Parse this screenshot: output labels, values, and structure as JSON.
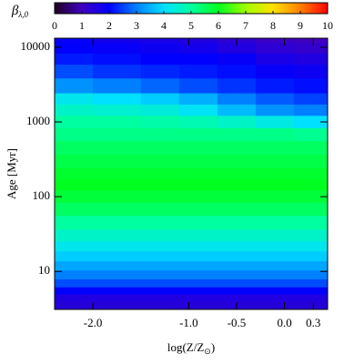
{
  "chart_data": {
    "type": "heatmap",
    "colorbar_label": {
      "main": "β",
      "sub": "λ,0"
    },
    "xlabel": {
      "main": "log(Z/Z",
      "sub": "⊙",
      "end": ")"
    },
    "ylabel": "Age [Myr]",
    "clim": [
      0,
      10
    ],
    "cticks": [
      0,
      1,
      2,
      3,
      4,
      5,
      6,
      7,
      8,
      9,
      10
    ],
    "colormap": [
      "#200020",
      "#4000c0",
      "#0000ff",
      "#0080ff",
      "#00e0ff",
      "#00ffa0",
      "#00ff20",
      "#a0ff00",
      "#ffe000",
      "#ff8000",
      "#ff0000"
    ],
    "xlim": [
      -2.4,
      0.45
    ],
    "xticks": [
      {
        "value": -2,
        "label": "-2.0"
      },
      {
        "value": -1,
        "label": "-1.0"
      },
      {
        "value": -0.5,
        "label": "-0.5"
      },
      {
        "value": 0,
        "label": "0.0"
      },
      0.3
    ],
    "ylim": [
      3.1,
      13200
    ],
    "ylog": true,
    "yticks": [
      10,
      100,
      1000,
      10000
    ],
    "x": [
      -2.3,
      -1.7,
      -1.3,
      -0.9,
      -0.5,
      -0.1,
      0.3
    ],
    "y": [
      3.5,
      4.5,
      5.5,
      7,
      9,
      12,
      16,
      22,
      30,
      45,
      70,
      100,
      150,
      200,
      300,
      450,
      700,
      1000,
      1500,
      2000,
      3000,
      5000,
      7000,
      10000,
      13000
    ],
    "values": [
      [
        1.4,
        1.4,
        1.4,
        1.4,
        1.4,
        1.4,
        1.4
      ],
      [
        1.5,
        1.5,
        1.5,
        1.5,
        1.5,
        1.5,
        1.5
      ],
      [
        2.0,
        2.0,
        2.0,
        2.0,
        2.0,
        2.0,
        2.0
      ],
      [
        2.6,
        2.6,
        2.6,
        2.6,
        2.6,
        2.6,
        2.6
      ],
      [
        3.0,
        3.0,
        3.0,
        3.0,
        3.0,
        3.0,
        3.0
      ],
      [
        3.4,
        3.4,
        3.4,
        3.4,
        3.4,
        3.4,
        3.4
      ],
      [
        3.8,
        3.8,
        3.8,
        3.8,
        3.8,
        3.8,
        3.8
      ],
      [
        4.2,
        4.2,
        4.2,
        4.2,
        4.2,
        4.2,
        4.2
      ],
      [
        4.6,
        4.6,
        4.6,
        4.6,
        4.6,
        4.6,
        4.6
      ],
      [
        5.0,
        5.0,
        5.0,
        5.0,
        5.0,
        5.0,
        5.0
      ],
      [
        5.5,
        5.5,
        5.5,
        5.5,
        5.5,
        5.5,
        5.5
      ],
      [
        5.8,
        5.8,
        5.8,
        5.8,
        5.8,
        5.8,
        5.8
      ],
      [
        6.0,
        6.0,
        6.0,
        6.0,
        6.0,
        6.0,
        6.0
      ],
      [
        5.9,
        5.9,
        5.9,
        5.9,
        5.9,
        5.9,
        5.9
      ],
      [
        5.7,
        5.7,
        5.7,
        5.7,
        5.7,
        5.7,
        5.7
      ],
      [
        5.5,
        5.5,
        5.5,
        5.5,
        5.5,
        5.5,
        5.5
      ],
      [
        5.2,
        5.2,
        5.2,
        5.2,
        5.2,
        5.2,
        5.1
      ],
      [
        5.0,
        5.0,
        4.9,
        4.8,
        4.6,
        4.3,
        4.0
      ],
      [
        4.6,
        4.5,
        4.4,
        4.1,
        3.6,
        3.2,
        3.0
      ],
      [
        4.2,
        4.0,
        3.8,
        3.5,
        3.0,
        2.7,
        2.5
      ],
      [
        3.2,
        3.0,
        2.8,
        2.6,
        2.4,
        2.2,
        2.1
      ],
      [
        2.6,
        2.4,
        2.3,
        2.2,
        2.1,
        1.9,
        1.8
      ],
      [
        2.2,
        2.1,
        2.0,
        2.0,
        1.9,
        1.6,
        1.5
      ],
      [
        2.0,
        1.9,
        1.8,
        1.7,
        1.5,
        1.3,
        1.2
      ],
      [
        1.9,
        1.7,
        1.6,
        1.5,
        1.3,
        1.1,
        1.0
      ]
    ]
  }
}
